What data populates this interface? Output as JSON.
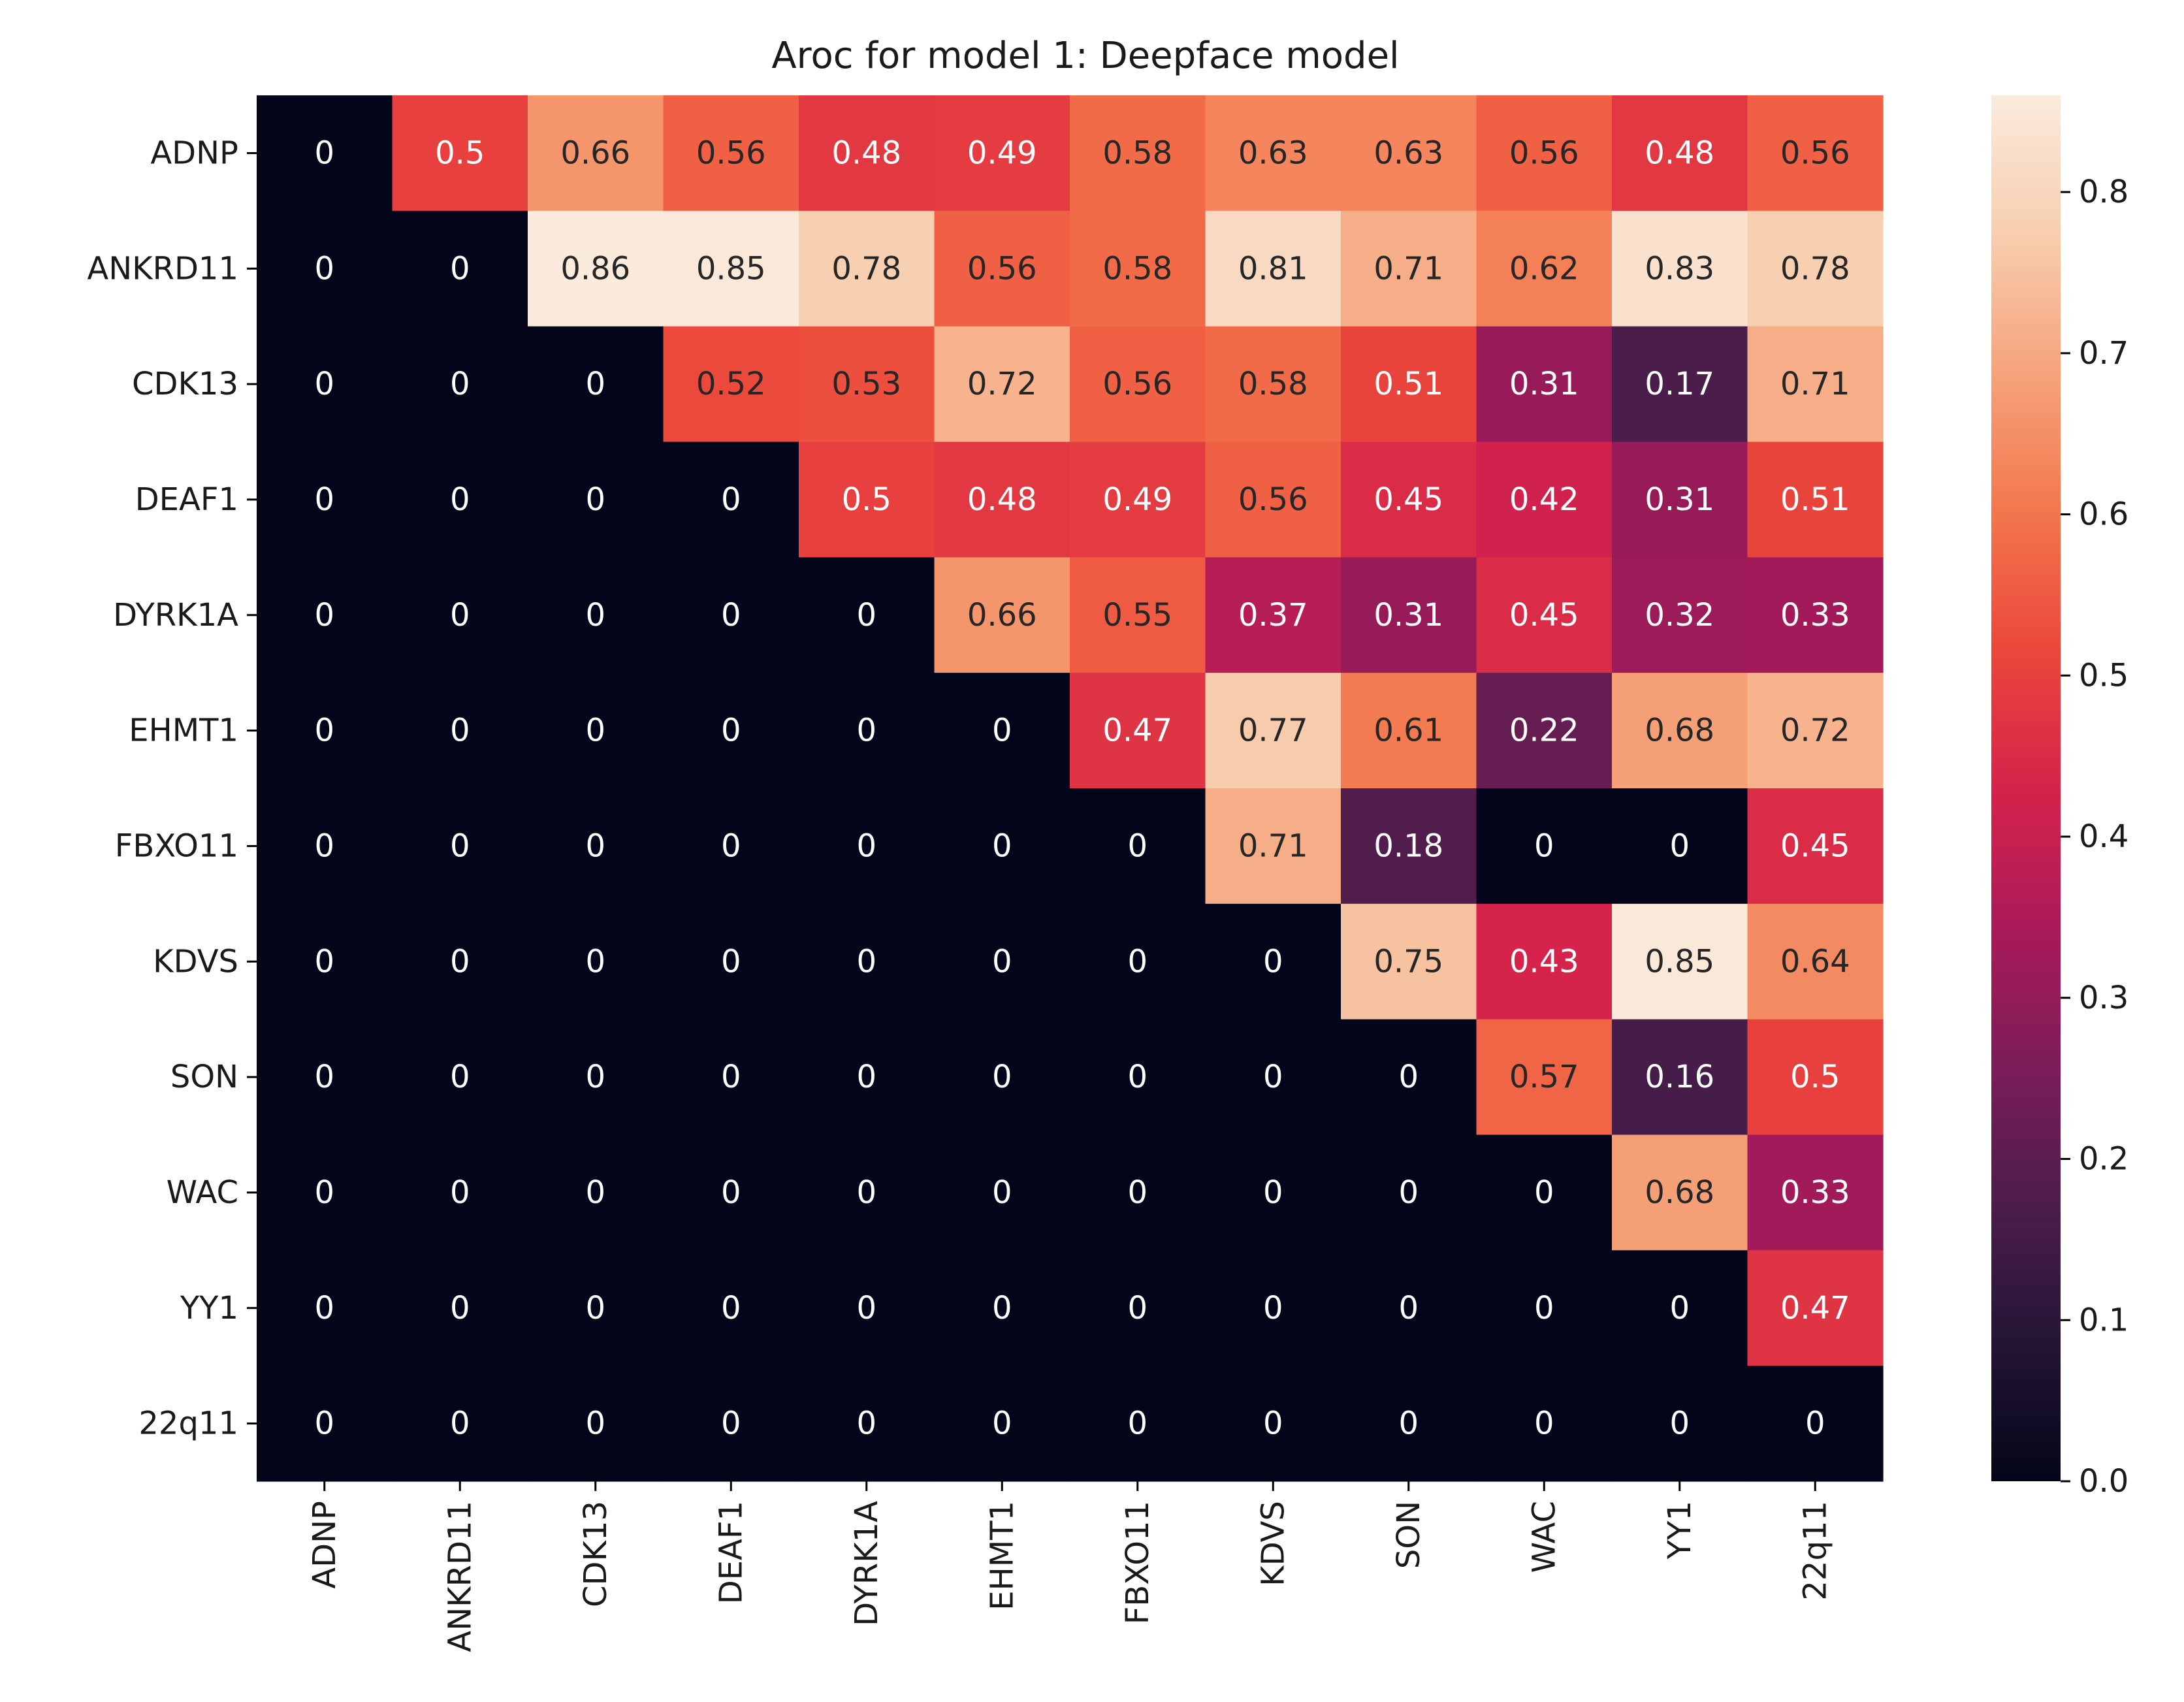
{
  "chart_data": {
    "type": "heatmap",
    "title": "Aroc for model 1: Deepface model",
    "xlabel": "",
    "ylabel": "",
    "x_categories": [
      "ADNP",
      "ANKRD11",
      "CDK13",
      "DEAF1",
      "DYRK1A",
      "EHMT1",
      "FBXO11",
      "KDVS",
      "SON",
      "WAC",
      "YY1",
      "22q11"
    ],
    "y_categories": [
      "ADNP",
      "ANKRD11",
      "CDK13",
      "DEAF1",
      "DYRK1A",
      "EHMT1",
      "FBXO11",
      "KDVS",
      "SON",
      "WAC",
      "YY1",
      "22q11"
    ],
    "values": [
      [
        0,
        0.5,
        0.66,
        0.56,
        0.48,
        0.49,
        0.58,
        0.63,
        0.63,
        0.56,
        0.48,
        0.56
      ],
      [
        0,
        0,
        0.86,
        0.85,
        0.78,
        0.56,
        0.58,
        0.81,
        0.71,
        0.62,
        0.83,
        0.78
      ],
      [
        0,
        0,
        0,
        0.52,
        0.53,
        0.72,
        0.56,
        0.58,
        0.51,
        0.31,
        0.17,
        0.71
      ],
      [
        0,
        0,
        0,
        0,
        0.5,
        0.48,
        0.49,
        0.56,
        0.45,
        0.42,
        0.31,
        0.51
      ],
      [
        0,
        0,
        0,
        0,
        0,
        0.66,
        0.55,
        0.37,
        0.31,
        0.45,
        0.32,
        0.33
      ],
      [
        0,
        0,
        0,
        0,
        0,
        0,
        0.47,
        0.77,
        0.61,
        0.22,
        0.68,
        0.72
      ],
      [
        0,
        0,
        0,
        0,
        0,
        0,
        0,
        0.71,
        0.18,
        0,
        0,
        0.45
      ],
      [
        0,
        0,
        0,
        0,
        0,
        0,
        0,
        0,
        0.75,
        0.43,
        0.85,
        0.64
      ],
      [
        0,
        0,
        0,
        0,
        0,
        0,
        0,
        0,
        0,
        0.57,
        0.16,
        0.5
      ],
      [
        0,
        0,
        0,
        0,
        0,
        0,
        0,
        0,
        0,
        0,
        0.68,
        0.33
      ],
      [
        0,
        0,
        0,
        0,
        0,
        0,
        0,
        0,
        0,
        0,
        0,
        0.47
      ],
      [
        0,
        0,
        0,
        0,
        0,
        0,
        0,
        0,
        0,
        0,
        0,
        0
      ]
    ],
    "colormap": "rocket",
    "vmin": 0,
    "vmax": 0.86,
    "colorbar_ticks": [
      "0.0",
      "0.1",
      "0.2",
      "0.3",
      "0.4",
      "0.5",
      "0.6",
      "0.7",
      "0.8"
    ],
    "annotations": true,
    "legend_placement": "right colorbar",
    "grid": false
  }
}
